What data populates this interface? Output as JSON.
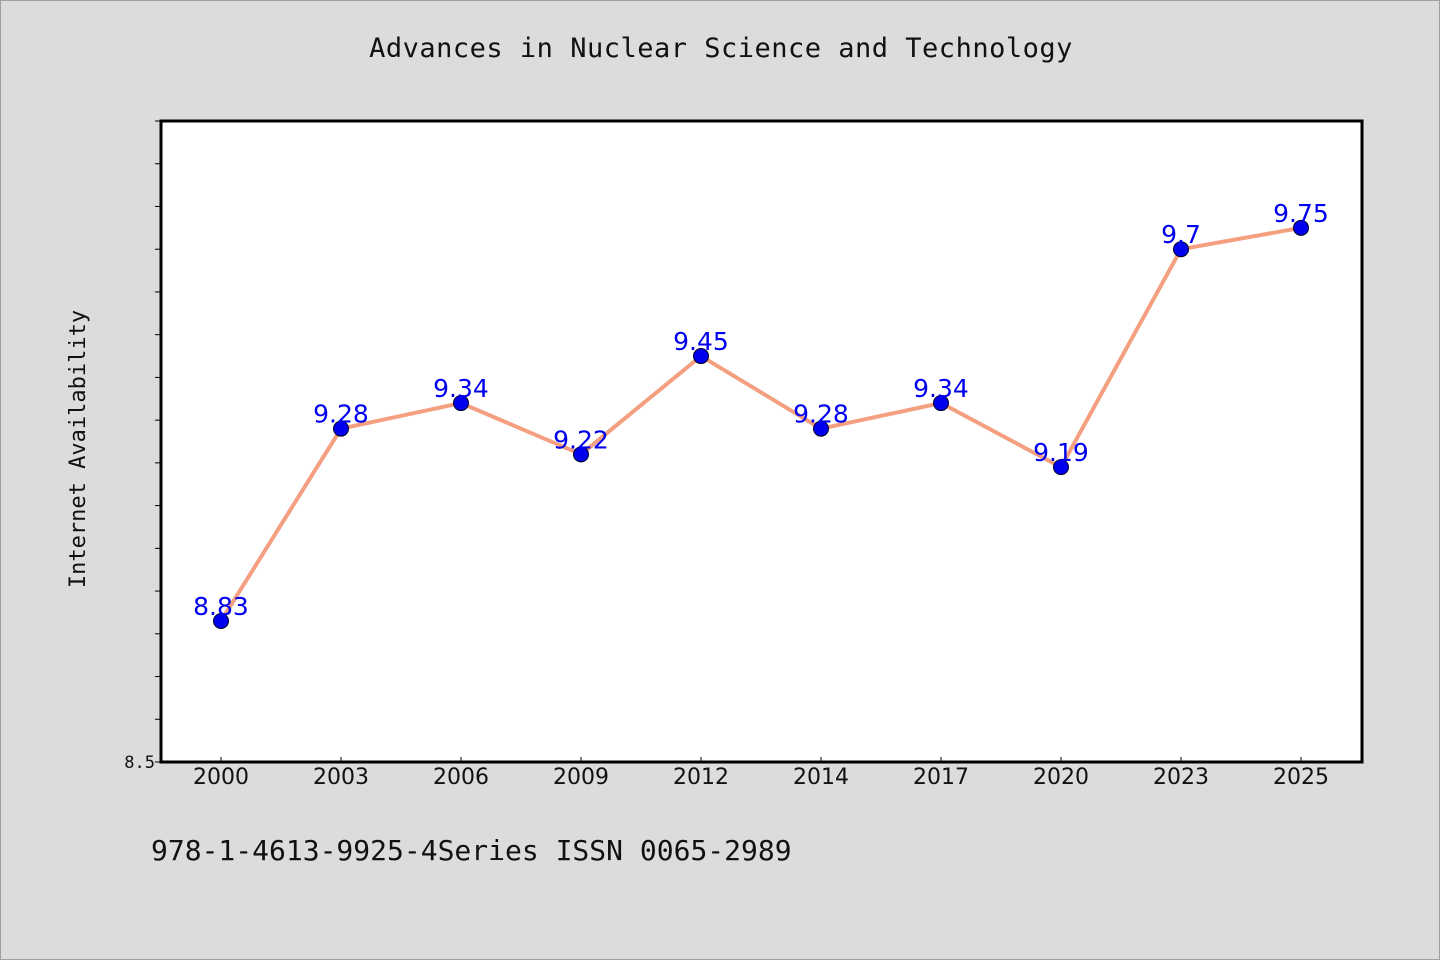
{
  "title": "Advances in Nuclear Science and Technology",
  "footer": "978-1-4613-9925-4Series ISSN 0065-2989",
  "colors": {
    "background": "#dcdcdc",
    "plot_background": "#ffffff",
    "line": "#f4a080",
    "marker": "#0000ee",
    "data_label": "#0000ee"
  },
  "chart_data": {
    "type": "line",
    "title": "Advances in Nuclear Science and Technology",
    "xlabel": "",
    "ylabel": "Internet Availability",
    "categories": [
      "2000",
      "2003",
      "2006",
      "2009",
      "2012",
      "2014",
      "2017",
      "2020",
      "2023",
      "2025"
    ],
    "series": [
      {
        "values": [
          8.83,
          9.28,
          9.34,
          9.22,
          9.45,
          9.28,
          9.34,
          9.19,
          9.7,
          9.75
        ]
      }
    ],
    "data_labels": [
      "8.83",
      "9.28",
      "9.34",
      "9.22",
      "9.45",
      "9.28",
      "9.34",
      "9.19",
      "9.7",
      "9.75"
    ],
    "y_tick_labels": [
      "8.5"
    ],
    "ylim": [
      8.5,
      10.0
    ],
    "grid": false,
    "legend": "none"
  }
}
